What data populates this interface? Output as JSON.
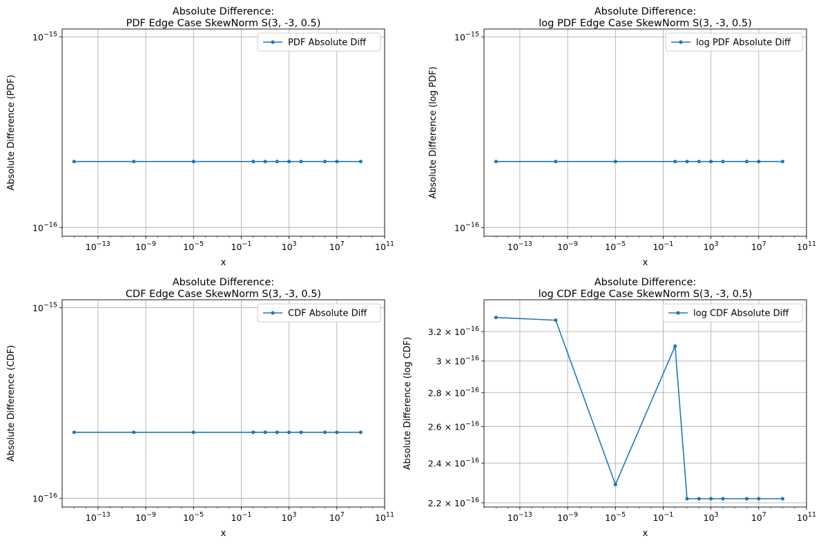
{
  "style": {
    "line_color": "#1f77b4",
    "grid_color": "#b0b0b0",
    "legend_border": "#cccccc"
  },
  "chart_data": [
    {
      "type": "line",
      "title": "Absolute Difference:\nPDF Edge Case SkewNorm S(3, -3, 0.5)",
      "xlabel": "x",
      "ylabel": "Absolute Difference (PDF)",
      "xscale": "log",
      "yscale": "log",
      "xlim": [
        1e-16,
        100000000000.0
      ],
      "ylim": [
        9e-17,
        1.1e-15
      ],
      "xticks": [
        {
          "value": 1e-13,
          "base": "10",
          "exp": "−13"
        },
        {
          "value": 1e-09,
          "base": "10",
          "exp": "−9"
        },
        {
          "value": 1e-05,
          "base": "10",
          "exp": "−5"
        },
        {
          "value": 0.1,
          "base": "10",
          "exp": "−1"
        },
        {
          "value": 1000,
          "base": "10",
          "exp": "3"
        },
        {
          "value": 10000000.0,
          "base": "10",
          "exp": "7"
        },
        {
          "value": 100000000000.0,
          "base": "10",
          "exp": "11"
        }
      ],
      "yticks": [
        {
          "value": 1e-16,
          "base": "10",
          "exp": "−16"
        },
        {
          "value": 1e-15,
          "base": "10",
          "exp": "−15"
        }
      ],
      "grid": true,
      "legend": {
        "location": "upper right"
      },
      "series": [
        {
          "name": "PDF Absolute Diff",
          "marker": "o",
          "x": [
            1e-15,
            1e-10,
            1e-05,
            1,
            10,
            100,
            1000,
            10000,
            1000000.0,
            10000000.0,
            1000000000.0
          ],
          "y": [
            2.22e-16,
            2.22e-16,
            2.22e-16,
            2.22e-16,
            2.22e-16,
            2.22e-16,
            2.22e-16,
            2.22e-16,
            2.22e-16,
            2.22e-16,
            2.22e-16
          ]
        }
      ]
    },
    {
      "type": "line",
      "title": "Absolute Difference:\nlog PDF Edge Case SkewNorm S(3, -3, 0.5)",
      "xlabel": "x",
      "ylabel": "Absolute Difference (log PDF)",
      "xscale": "log",
      "yscale": "log",
      "xlim": [
        1e-16,
        100000000000.0
      ],
      "ylim": [
        9e-17,
        1.1e-15
      ],
      "xticks": [
        {
          "value": 1e-13,
          "base": "10",
          "exp": "−13"
        },
        {
          "value": 1e-09,
          "base": "10",
          "exp": "−9"
        },
        {
          "value": 1e-05,
          "base": "10",
          "exp": "−5"
        },
        {
          "value": 0.1,
          "base": "10",
          "exp": "−1"
        },
        {
          "value": 1000,
          "base": "10",
          "exp": "3"
        },
        {
          "value": 10000000.0,
          "base": "10",
          "exp": "7"
        },
        {
          "value": 100000000000.0,
          "base": "10",
          "exp": "11"
        }
      ],
      "yticks": [
        {
          "value": 1e-16,
          "base": "10",
          "exp": "−16"
        },
        {
          "value": 1e-15,
          "base": "10",
          "exp": "−15"
        }
      ],
      "grid": true,
      "legend": {
        "location": "upper right"
      },
      "series": [
        {
          "name": "log PDF Absolute Diff",
          "marker": "o",
          "x": [
            1e-15,
            1e-10,
            1e-05,
            1,
            10,
            100,
            1000,
            10000,
            1000000.0,
            10000000.0,
            1000000000.0
          ],
          "y": [
            2.22e-16,
            2.22e-16,
            2.22e-16,
            2.22e-16,
            2.22e-16,
            2.22e-16,
            2.22e-16,
            2.22e-16,
            2.22e-16,
            2.22e-16,
            2.22e-16
          ]
        }
      ]
    },
    {
      "type": "line",
      "title": "Absolute Difference:\nCDF Edge Case SkewNorm S(3, -3, 0.5)",
      "xlabel": "x",
      "ylabel": "Absolute Difference (CDF)",
      "xscale": "log",
      "yscale": "log",
      "xlim": [
        1e-16,
        100000000000.0
      ],
      "ylim": [
        9e-17,
        1.1e-15
      ],
      "xticks": [
        {
          "value": 1e-13,
          "base": "10",
          "exp": "−13"
        },
        {
          "value": 1e-09,
          "base": "10",
          "exp": "−9"
        },
        {
          "value": 1e-05,
          "base": "10",
          "exp": "−5"
        },
        {
          "value": 0.1,
          "base": "10",
          "exp": "−1"
        },
        {
          "value": 1000,
          "base": "10",
          "exp": "3"
        },
        {
          "value": 10000000.0,
          "base": "10",
          "exp": "7"
        },
        {
          "value": 100000000000.0,
          "base": "10",
          "exp": "11"
        }
      ],
      "yticks": [
        {
          "value": 1e-16,
          "base": "10",
          "exp": "−16"
        },
        {
          "value": 1e-15,
          "base": "10",
          "exp": "−15"
        }
      ],
      "grid": true,
      "legend": {
        "location": "upper right"
      },
      "series": [
        {
          "name": "CDF Absolute Diff",
          "marker": "o",
          "x": [
            1e-15,
            1e-10,
            1e-05,
            1,
            10,
            100,
            1000,
            10000,
            1000000.0,
            10000000.0,
            1000000000.0
          ],
          "y": [
            2.22e-16,
            2.22e-16,
            2.22e-16,
            2.22e-16,
            2.22e-16,
            2.22e-16,
            2.22e-16,
            2.22e-16,
            2.22e-16,
            2.22e-16,
            2.22e-16
          ]
        }
      ]
    },
    {
      "type": "line",
      "title": "Absolute Difference:\nlog CDF Edge Case SkewNorm S(3, -3, 0.5)",
      "xlabel": "x",
      "ylabel": "Absolute Difference (log CDF)",
      "xscale": "log",
      "yscale": "log",
      "xlim": [
        1e-16,
        100000000000.0
      ],
      "ylim": [
        2.18e-16,
        3.43e-16
      ],
      "xticks": [
        {
          "value": 1e-13,
          "base": "10",
          "exp": "−13"
        },
        {
          "value": 1e-09,
          "base": "10",
          "exp": "−9"
        },
        {
          "value": 1e-05,
          "base": "10",
          "exp": "−5"
        },
        {
          "value": 0.1,
          "base": "10",
          "exp": "−1"
        },
        {
          "value": 1000,
          "base": "10",
          "exp": "3"
        },
        {
          "value": 10000000.0,
          "base": "10",
          "exp": "7"
        },
        {
          "value": 100000000000.0,
          "base": "10",
          "exp": "11"
        }
      ],
      "yticks": [
        {
          "value": 2.2e-16,
          "base": "2.2 × 10",
          "exp": "−16"
        },
        {
          "value": 2.4e-16,
          "base": "2.4 × 10",
          "exp": "−16"
        },
        {
          "value": 2.6e-16,
          "base": "2.6 × 10",
          "exp": "−16"
        },
        {
          "value": 2.8e-16,
          "base": "2.8 × 10",
          "exp": "−16"
        },
        {
          "value": 3e-16,
          "base": "3 × 10",
          "exp": "−16"
        },
        {
          "value": 3.2e-16,
          "base": "3.2 × 10",
          "exp": "−16"
        }
      ],
      "grid": true,
      "legend": {
        "location": "upper right"
      },
      "series": [
        {
          "name": "log CDF Absolute Diff",
          "marker": "o",
          "x": [
            1e-15,
            1e-10,
            1e-05,
            1,
            10,
            100,
            1000,
            10000,
            1000000.0,
            10000000.0,
            1000000000.0
          ],
          "y": [
            3.3e-16,
            3.28e-16,
            2.29e-16,
            3.1e-16,
            2.22e-16,
            2.22e-16,
            2.22e-16,
            2.22e-16,
            2.22e-16,
            2.22e-16,
            2.22e-16
          ]
        }
      ]
    }
  ]
}
